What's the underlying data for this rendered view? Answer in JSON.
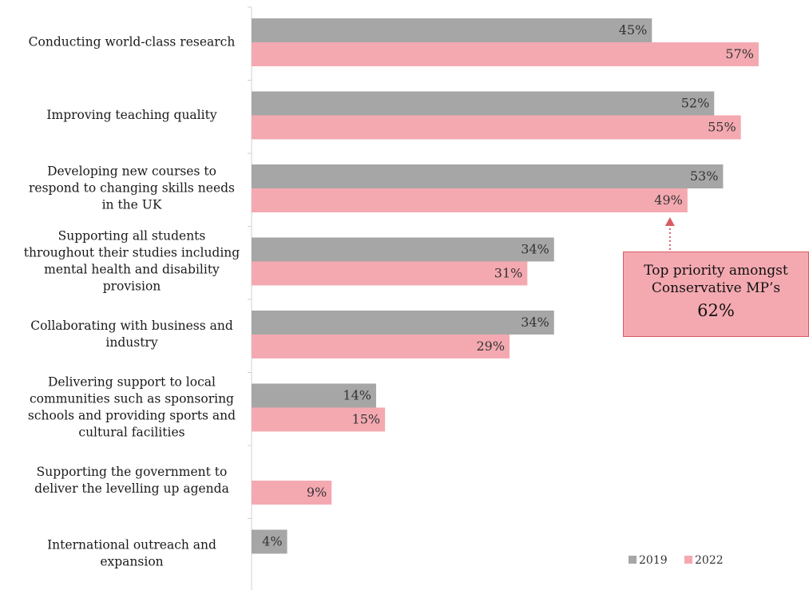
{
  "chart_data": {
    "type": "bar",
    "orientation": "horizontal",
    "categories": [
      "Conducting world-class research",
      "Improving teaching quality",
      "Developing new courses to respond to changing skills needs in the UK",
      "Supporting all students throughout their studies including mental health and disability provision",
      "Collaborating with business and industry",
      "Delivering support to local communities such as sponsoring schools and providing sports and cultural facilities",
      "Supporting the government to deliver the levelling up agenda",
      "International outreach and expansion"
    ],
    "category_lines": [
      [
        "Conducting world-class research"
      ],
      [
        "Improving teaching quality"
      ],
      [
        "Developing new courses to",
        "respond to changing skills needs",
        "in the UK"
      ],
      [
        "Supporting all students",
        "throughout their studies including",
        "mental health and disability",
        "provision"
      ],
      [
        "Collaborating with business and",
        "industry"
      ],
      [
        "Delivering support to local",
        "communities such as sponsoring",
        "schools and providing sports and",
        "cultural facilities"
      ],
      [
        "Supporting the government to",
        "deliver the levelling up agenda"
      ],
      [
        "International outreach and",
        "expansion"
      ]
    ],
    "series": [
      {
        "name": "2019",
        "color": "#a6a6a6",
        "values": [
          45,
          52,
          53,
          34,
          34,
          14,
          null,
          4
        ]
      },
      {
        "name": "2022",
        "color": "#f4a9b1",
        "values": [
          57,
          55,
          49,
          31,
          29,
          15,
          9,
          null
        ]
      }
    ],
    "value_suffix": "%",
    "xlim": [
      0,
      60
    ],
    "legend_position": "bottom-right",
    "grid": false
  },
  "callout": {
    "line1": "Top priority amongst",
    "line2": "Conservative MP’s",
    "value": "62%",
    "target_category_index": 2,
    "target_series_index": 1,
    "fill": "#f4a9b1",
    "border": "#d85b64"
  }
}
